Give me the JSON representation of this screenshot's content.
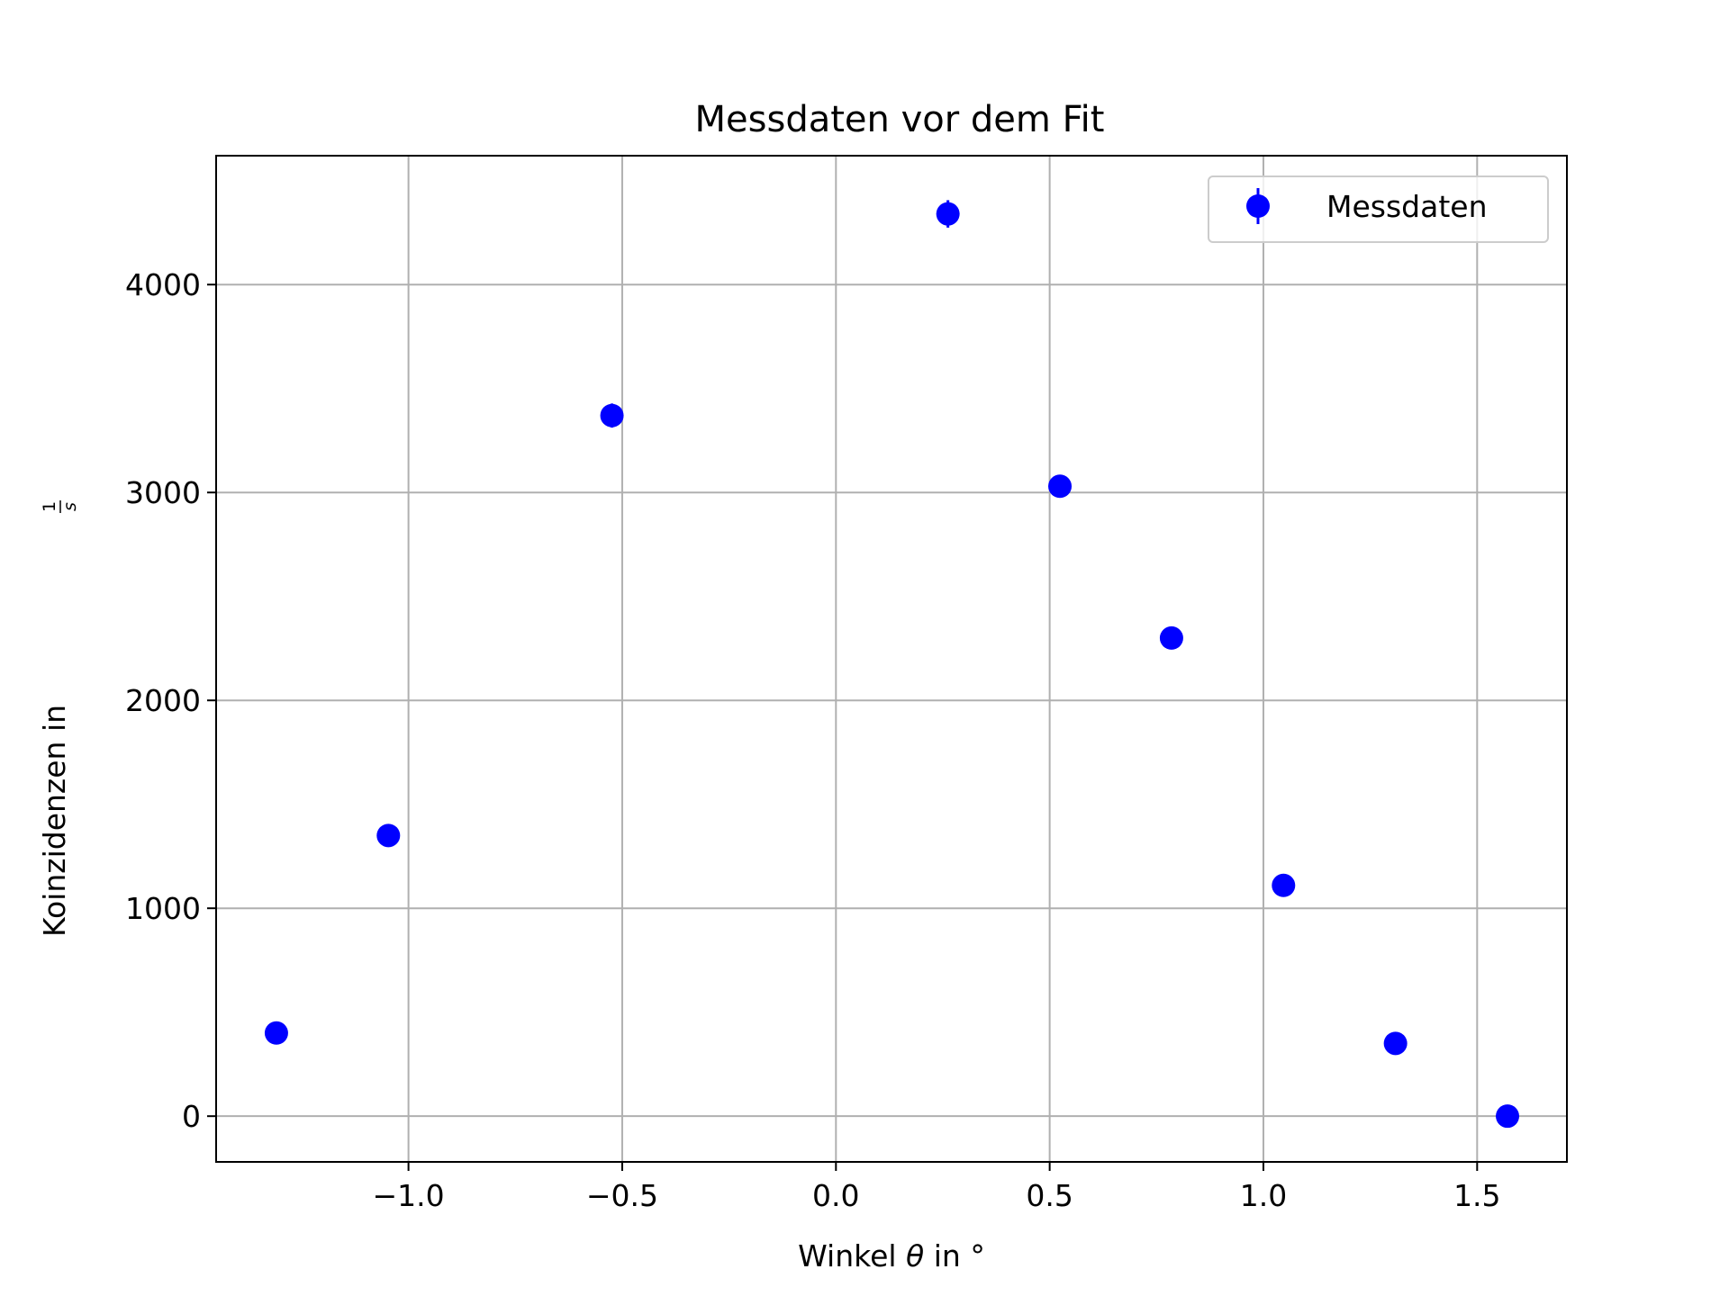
{
  "chart_data": {
    "type": "scatter",
    "title": "Messdaten vor dem Fit",
    "xlabel": {
      "prefix": "Winkel ",
      "symbol": "θ",
      "suffix": " in °"
    },
    "ylabel": {
      "prefix": "Koinzidenzen in ",
      "frac_num": "1",
      "frac_den": "s"
    },
    "xlim": [
      -1.45,
      1.71
    ],
    "ylim": [
      -220,
      4620
    ],
    "xticks": [
      -1.0,
      -0.5,
      0.0,
      0.5,
      1.0,
      1.5
    ],
    "xtick_labels": [
      "−1.0",
      "−0.5",
      "0.0",
      "0.5",
      "1.0",
      "1.5"
    ],
    "yticks": [
      0,
      1000,
      2000,
      3000,
      4000
    ],
    "ytick_labels": [
      "0",
      "1000",
      "2000",
      "3000",
      "4000"
    ],
    "grid": true,
    "legend_position": "top-right",
    "series": [
      {
        "name": "Messdaten",
        "color": "#0000ff",
        "marker": "circle with vertical error bar",
        "x": [
          -1.309,
          -1.047,
          -0.524,
          0.262,
          0.524,
          0.785,
          1.047,
          1.309,
          1.571
        ],
        "y": [
          400,
          1350,
          3370,
          4340,
          3030,
          2300,
          1110,
          350,
          0
        ],
        "yerr": [
          20,
          37,
          58,
          66,
          55,
          48,
          33,
          19,
          0
        ]
      }
    ]
  }
}
